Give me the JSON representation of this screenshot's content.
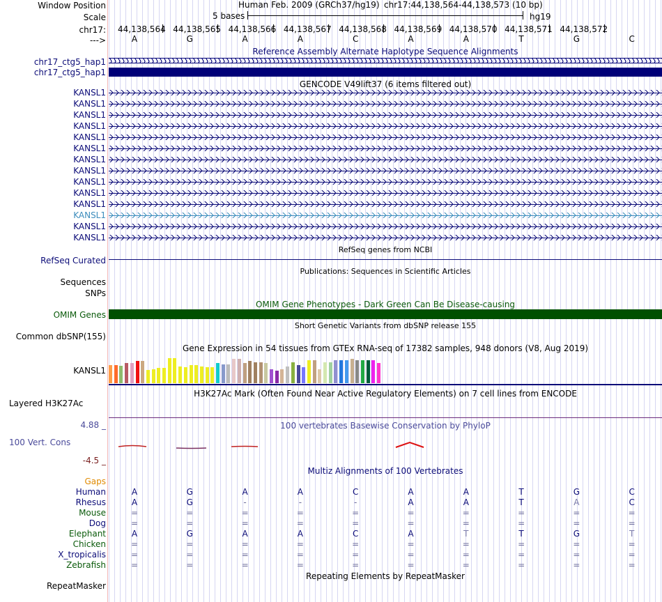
{
  "header": {
    "window_position_label": "Window Position",
    "scale_label": "Scale",
    "chrom_label": "chr17:",
    "strand_label": "--->",
    "assembly_title": "Human Feb. 2009 (GRCh37/hg19)",
    "position_title": "chr17:44,138,564-44,138,573 (10 bp)",
    "scale_text": "5 bases",
    "scale_db": "hg19",
    "positions": [
      "44,138,564",
      "44,138,565",
      "44,138,566",
      "44,138,567",
      "44,138,568",
      "44,138,569",
      "44,138,570",
      "44,138,571",
      "44,138,572"
    ],
    "bases": [
      "A",
      "G",
      "A",
      "A",
      "C",
      "A",
      "A",
      "T",
      "G",
      "C"
    ]
  },
  "tracks": {
    "alt_haplo": {
      "title": "Reference Assembly Alternate Haplotype Sequence Alignments",
      "rows": [
        "chr17_ctg5_hap1",
        "chr17_ctg5_hap1"
      ],
      "color": "#000078"
    },
    "gencode": {
      "title": "GENCODE V49lift37 (6 items filtered out)",
      "rows": [
        "KANSL1",
        "KANSL1",
        "KANSL1",
        "KANSL1",
        "KANSL1",
        "KANSL1",
        "KANSL1",
        "KANSL1",
        "KANSL1",
        "KANSL1",
        "KANSL1",
        "KANSL1",
        "KANSL1",
        "KANSL1"
      ],
      "highlight_row": 11,
      "color": "#0c0c78",
      "highlight_color": "#3c8cbc"
    },
    "refseq": {
      "title": "RefSeq genes from NCBI",
      "label": "RefSeq Curated"
    },
    "publications": {
      "title": "Publications: Sequences in Scientific Articles",
      "labels": [
        "Sequences",
        "SNPs"
      ]
    },
    "omim": {
      "title": "OMIM Gene Phenotypes - Dark Green Can Be Disease-causing",
      "label": "OMIM Genes",
      "color": "#005000"
    },
    "dbsnp": {
      "title": "Short Genetic Variants from dbSNP release 155",
      "label": "Common dbSNP(155)"
    },
    "gtex": {
      "title": "Gene Expression in 54 tissues from GTEx RNA-seq of 17382 samples, 948 donors (V8, Aug 2019)",
      "label": "KANSL1",
      "colors": [
        "#ff9e4a",
        "#ff6b2b",
        "#8fbc6d",
        "#b85a63",
        "#e0a0c0",
        "#f01010",
        "#cba880",
        "#eeee22",
        "#eeee22",
        "#eeee22",
        "#eeee22",
        "#eeee22",
        "#eeee22",
        "#eeee22",
        "#eeee22",
        "#eeee22",
        "#eeee22",
        "#eeee22",
        "#eeee22",
        "#eeee22",
        "#11cccc",
        "#8899cc",
        "#bbbbbb",
        "#e8c8c8",
        "#d0b0b0",
        "#c0a080",
        "#a08060",
        "#a08060",
        "#b09070",
        "#c8c8a0",
        "#a050d0",
        "#8a2aa8",
        "#d4b496",
        "#c0c0c0",
        "#88b040",
        "#4a4a9a",
        "#7777ff",
        "#eeee22",
        "#c0a080",
        "#ddc8a8",
        "#d4e8b0",
        "#a0d0a0",
        "#9090d0",
        "#2277dd",
        "#4499ee",
        "#c8b090",
        "#888888",
        "#22aa44",
        "#005d3a",
        "#ee22ee",
        "#ff33cc"
      ],
      "heights": [
        0.6,
        0.6,
        0.57,
        0.66,
        0.66,
        0.73,
        0.73,
        0.43,
        0.45,
        0.5,
        0.5,
        0.82,
        0.82,
        0.55,
        0.53,
        0.58,
        0.58,
        0.55,
        0.53,
        0.53,
        0.66,
        0.62,
        0.62,
        0.8,
        0.8,
        0.66,
        0.73,
        0.68,
        0.68,
        0.66,
        0.46,
        0.41,
        0.46,
        0.55,
        0.68,
        0.6,
        0.52,
        0.75,
        0.75,
        0.45,
        0.68,
        0.68,
        0.75,
        0.75,
        0.75,
        0.8,
        0.75,
        0.75,
        0.75,
        0.75,
        0.66
      ]
    },
    "h3k27ac": {
      "title": "H3K27Ac Mark (Often Found Near Active Regulatory Elements) on 7 cell lines from ENCODE",
      "label": "Layered H3K27Ac"
    },
    "phylop": {
      "title": "100 vertebrates Basewise Conservation by PhyloP",
      "label": "100 Vert. Cons",
      "max_label": "4.88 _",
      "min_label": "-4.5 _",
      "title_color": "#4a4a9a",
      "min_color": "#7a2020"
    },
    "multiz": {
      "title": "Multiz Alignments of 100 Vertebrates",
      "gaps_label": "Gaps",
      "species": [
        {
          "name": "Human",
          "color": "#0c0c78",
          "bases": [
            "A",
            "G",
            "A",
            "A",
            "C",
            "A",
            "A",
            "T",
            "G",
            "C"
          ]
        },
        {
          "name": "Rhesus",
          "color": "#0c0c78",
          "bases": [
            "A",
            "G",
            "-",
            "-",
            "-",
            "A",
            "A",
            "T",
            "A",
            "C"
          ]
        },
        {
          "name": "Mouse",
          "color": "#0a5a0a",
          "bases": [
            "=",
            "=",
            "=",
            "=",
            "=",
            "=",
            "=",
            "=",
            "=",
            "="
          ]
        },
        {
          "name": "Dog",
          "color": "#0c0c78",
          "bases": [
            "=",
            "=",
            "=",
            "=",
            "=",
            "=",
            "=",
            "=",
            "=",
            "="
          ]
        },
        {
          "name": "Elephant",
          "color": "#0a5a0a",
          "bases": [
            "A",
            "G",
            "A",
            "A",
            "C",
            "A",
            "T",
            "T",
            "G",
            "T"
          ]
        },
        {
          "name": "Chicken",
          "color": "#0a5a0a",
          "bases": [
            "=",
            "=",
            "=",
            "=",
            "=",
            "=",
            "=",
            "=",
            "=",
            "="
          ]
        },
        {
          "name": "X_tropicalis",
          "color": "#0c0c78",
          "bases": [
            "=",
            "=",
            "=",
            "=",
            "=",
            "=",
            "=",
            "=",
            "=",
            "="
          ]
        },
        {
          "name": "Zebrafish",
          "color": "#0a5a0a",
          "bases": [
            "=",
            "=",
            "=",
            "=",
            "=",
            "=",
            "=",
            "=",
            "=",
            "="
          ]
        }
      ]
    },
    "repeatmasker": {
      "title": "Repeating Elements by RepeatMasker",
      "label": "RepeatMasker"
    }
  }
}
